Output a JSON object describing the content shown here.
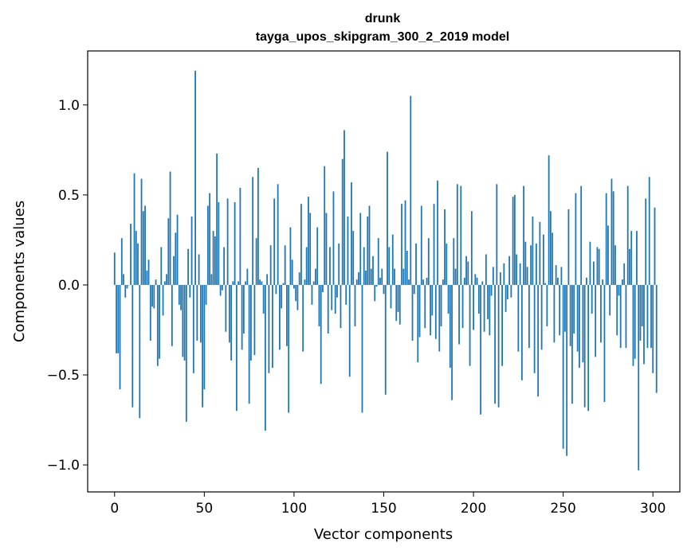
{
  "chart_data": {
    "type": "bar",
    "title": "drunk",
    "subtitle": "tayga_upos_skipgram_300_2_2019 model",
    "xlabel": "Vector components",
    "ylabel": "Components values",
    "xlim": [
      -15,
      315
    ],
    "ylim": [
      -1.15,
      1.3
    ],
    "xticks": [
      0,
      50,
      100,
      150,
      200,
      250,
      300
    ],
    "xtick_labels": [
      "0",
      "50",
      "100",
      "150",
      "200",
      "250",
      "300"
    ],
    "yticks": [
      -1.0,
      -0.5,
      0.0,
      0.5,
      1.0
    ],
    "ytick_labels": [
      "−1.0",
      "−0.5",
      "0.0",
      "0.5",
      "1.0"
    ],
    "bar_color": "#1f77b4",
    "grid": false,
    "legend": "none",
    "values": [
      0.18,
      -0.38,
      -0.38,
      -0.58,
      0.26,
      0.06,
      -0.07,
      -0.02,
      0.0,
      0.34,
      -0.68,
      0.62,
      0.3,
      0.23,
      -0.74,
      0.59,
      0.41,
      0.44,
      0.08,
      0.14,
      -0.31,
      -0.12,
      -0.13,
      0.03,
      -0.45,
      -0.41,
      0.21,
      -0.17,
      0.02,
      0.06,
      0.37,
      0.63,
      -0.34,
      0.16,
      0.29,
      0.39,
      -0.11,
      -0.14,
      -0.4,
      -0.42,
      -0.76,
      0.2,
      -0.07,
      0.38,
      -0.49,
      1.19,
      -0.31,
      0.17,
      -0.32,
      -0.68,
      -0.58,
      -0.11,
      0.44,
      0.51,
      0.06,
      0.3,
      0.27,
      0.73,
      0.46,
      -0.06,
      -0.03,
      0.21,
      -0.26,
      0.48,
      -0.32,
      -0.42,
      0.02,
      0.46,
      -0.7,
      0.02,
      0.54,
      -0.36,
      -0.27,
      0.02,
      0.09,
      -0.66,
      -0.42,
      0.6,
      -0.39,
      0.26,
      0.65,
      0.03,
      0.02,
      -0.16,
      -0.81,
      0.06,
      -0.49,
      0.22,
      -0.46,
      0.48,
      -0.05,
      0.56,
      -0.36,
      -0.13,
      0.01,
      0.22,
      -0.34,
      -0.71,
      0.32,
      0.14,
      -0.02,
      -0.09,
      -0.14,
      0.07,
      0.45,
      -0.37,
      0.03,
      0.21,
      0.49,
      0.4,
      -0.11,
      0.02,
      0.09,
      0.32,
      -0.23,
      -0.55,
      -0.04,
      0.66,
      0.4,
      -0.27,
      0.21,
      -0.14,
      0.52,
      -0.16,
      -0.07,
      0.23,
      -0.24,
      0.7,
      0.86,
      -0.11,
      0.38,
      -0.51,
      0.57,
      0.3,
      -0.23,
      0.03,
      0.07,
      0.4,
      -0.71,
      0.21,
      0.08,
      0.38,
      0.44,
      0.09,
      0.16,
      -0.09,
      -0.01,
      0.26,
      0.04,
      0.09,
      -0.05,
      -0.61,
      0.74,
      0.21,
      -0.13,
      0.28,
      0.09,
      -0.2,
      -0.15,
      -0.22,
      0.45,
      0.09,
      0.47,
      0.19,
      0.03,
      1.05,
      -0.31,
      -0.05,
      0.23,
      -0.43,
      -0.29,
      0.44,
      0.03,
      -0.24,
      0.04,
      0.26,
      -0.28,
      -0.17,
      0.45,
      -0.3,
      0.58,
      -0.37,
      -0.23,
      0.03,
      0.42,
      0.23,
      -0.16,
      -0.46,
      -0.64,
      0.26,
      0.09,
      0.56,
      -0.33,
      0.55,
      -0.24,
      0.04,
      0.16,
      0.13,
      -0.45,
      0.41,
      -0.25,
      0.06,
      0.04,
      -0.16,
      -0.72,
      0.02,
      -0.26,
      0.17,
      -0.19,
      -0.28,
      -0.06,
      0.1,
      -0.66,
      0.56,
      -0.68,
      0.07,
      -0.45,
      0.12,
      -0.15,
      -0.08,
      0.16,
      -0.07,
      0.49,
      0.5,
      0.17,
      -0.37,
      0.12,
      -0.53,
      0.55,
      0.24,
      0.1,
      -0.35,
      0.22,
      0.38,
      -0.49,
      0.23,
      -0.62,
      0.35,
      -0.36,
      0.28,
      0.01,
      -0.23,
      0.72,
      0.41,
      0.29,
      -0.32,
      0.11,
      0.04,
      -0.28,
      0.1,
      -0.91,
      -0.26,
      -0.95,
      0.42,
      -0.34,
      -0.66,
      -0.27,
      0.51,
      -0.37,
      -0.46,
      0.55,
      -0.43,
      -0.68,
      0.04,
      -0.7,
      0.24,
      -0.16,
      0.13,
      -0.4,
      0.21,
      0.2,
      -0.32,
      0.03,
      -0.65,
      0.51,
      0.33,
      -0.17,
      0.59,
      0.52,
      0.22,
      -0.28,
      -0.06,
      -0.35,
      0.03,
      0.12,
      -0.35,
      0.55,
      0.2,
      0.3,
      -0.45,
      -0.41,
      0.3,
      -1.03,
      -0.31,
      -0.23,
      -0.44,
      0.48,
      -0.35,
      0.6,
      -0.35,
      -0.49,
      0.43,
      -0.6
    ]
  }
}
